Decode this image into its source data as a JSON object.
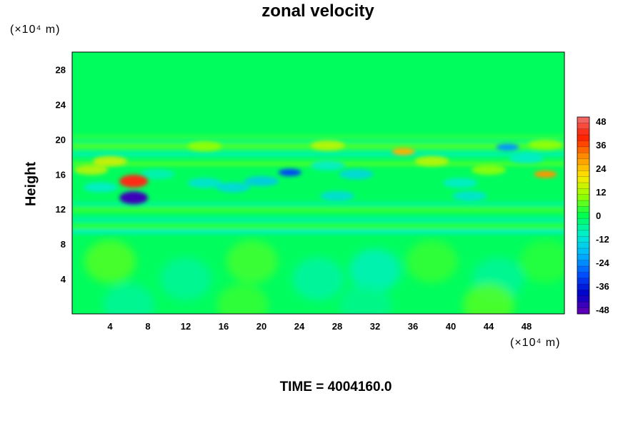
{
  "chart_data": {
    "type": "heatmap",
    "title": "zonal velocity",
    "ylabel": "Height",
    "xlabel": "",
    "x_unit_label": "(×10⁴ m)",
    "y_unit_label": "(×10⁴ m)",
    "xlim": [
      0,
      52
    ],
    "ylim": [
      0,
      30
    ],
    "x_ticks": [
      "4",
      "8",
      "12",
      "16",
      "20",
      "24",
      "28",
      "32",
      "36",
      "40",
      "44",
      "48"
    ],
    "y_ticks": [
      "4",
      "8",
      "12",
      "16",
      "20",
      "24",
      "28"
    ],
    "colorbar": {
      "range": [
        -48,
        48
      ],
      "levels": 33,
      "tick_labels": [
        "48",
        "36",
        "24",
        "12",
        "0",
        "-12",
        "-24",
        "-36",
        "-48"
      ],
      "colors": [
        "#6a00b0",
        "#0000c8",
        "#0050ff",
        "#00b4ff",
        "#00eed2",
        "#00ff50",
        "#96ff00",
        "#ffe600",
        "#ff8c00",
        "#ff1e00",
        "#f07070"
      ]
    },
    "features": [
      {
        "x": 6.5,
        "y": 15.2,
        "value": 40,
        "desc_color": "#ff3c00"
      },
      {
        "x": 6.5,
        "y": 13.3,
        "value": -44
      },
      {
        "x": 23,
        "y": 16.2,
        "value": -30
      },
      {
        "x": 35,
        "y": 18.6,
        "value": 25
      },
      {
        "x": 46,
        "y": 19.1,
        "value": -22
      },
      {
        "x": 50,
        "y": 16.0,
        "value": 28
      }
    ]
  },
  "footer": {
    "time_text": "TIME = 4004160.0"
  }
}
